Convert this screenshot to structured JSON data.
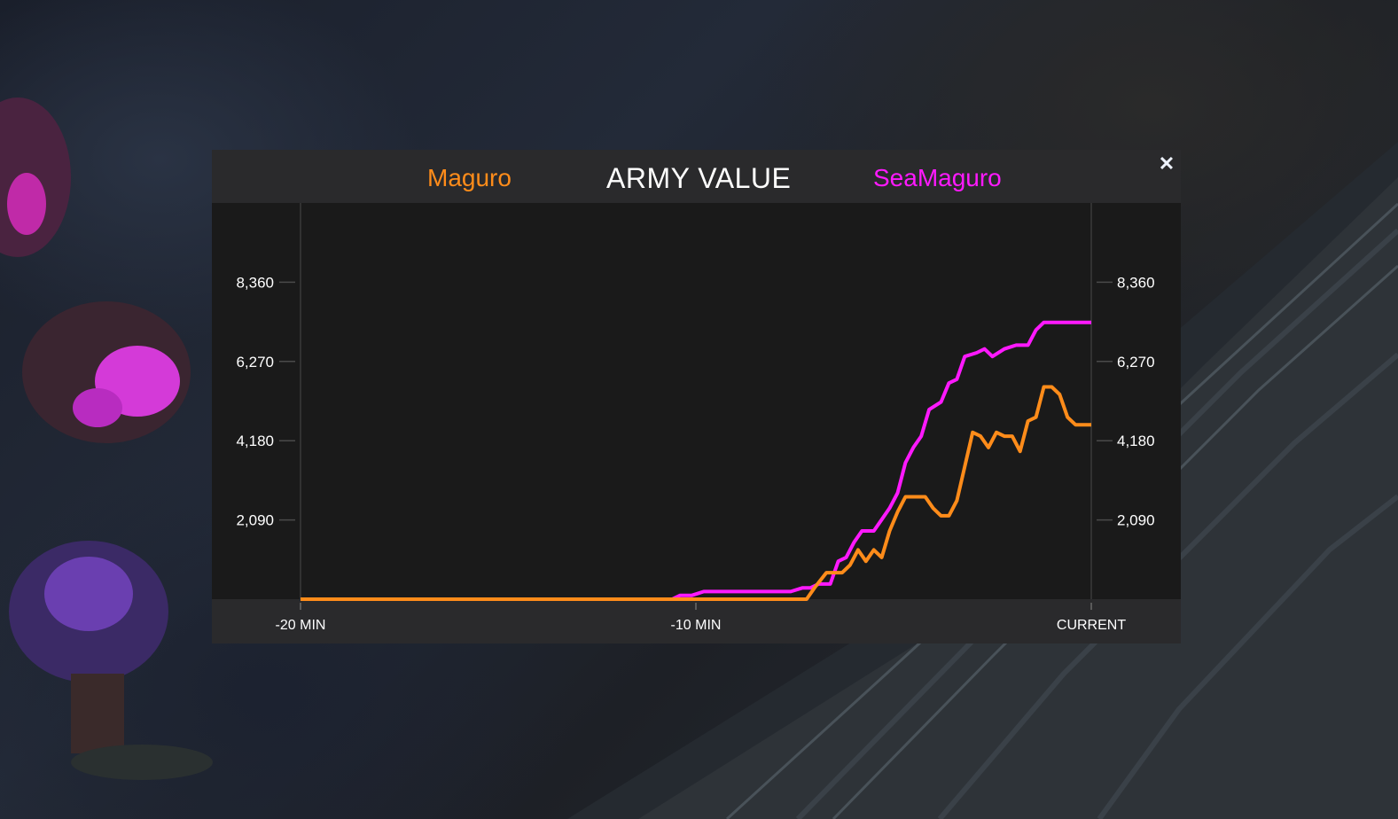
{
  "header": {
    "player_left": "Maguro",
    "title": "ARMY VALUE",
    "player_right": "SeaMaguro",
    "close_icon": "close-icon"
  },
  "colors": {
    "maguro": "#ff8c1a",
    "seamaguro": "#ff19ff",
    "panel_bg": "#2a2a2c",
    "plot_bg": "#1a1a1a"
  },
  "chart_data": {
    "type": "line",
    "title": "ARMY VALUE",
    "y_ticks": [
      "2,090",
      "4,180",
      "6,270",
      "8,360"
    ],
    "y_tick_values": [
      2090,
      4180,
      6270,
      8360
    ],
    "x_ticks": [
      "-20 MIN",
      "-10 MIN",
      "CURRENT"
    ],
    "xlim": [
      -20,
      0
    ],
    "ylim": [
      0,
      10450
    ],
    "grid": false,
    "series": [
      {
        "name": "SeaMaguro",
        "color": "#ff19ff",
        "points": [
          [
            -20,
            0
          ],
          [
            -10.6,
            0
          ],
          [
            -10.4,
            100
          ],
          [
            -10.1,
            100
          ],
          [
            -9.8,
            200
          ],
          [
            -8.8,
            200
          ],
          [
            -7.6,
            200
          ],
          [
            -7.3,
            300
          ],
          [
            -7.1,
            300
          ],
          [
            -6.9,
            400
          ],
          [
            -6.6,
            400
          ],
          [
            -6.4,
            1000
          ],
          [
            -6.2,
            1100
          ],
          [
            -6.0,
            1500
          ],
          [
            -5.8,
            1800
          ],
          [
            -5.5,
            1800
          ],
          [
            -5.3,
            2100
          ],
          [
            -5.1,
            2400
          ],
          [
            -4.9,
            2800
          ],
          [
            -4.7,
            3600
          ],
          [
            -4.5,
            4000
          ],
          [
            -4.3,
            4300
          ],
          [
            -4.1,
            5000
          ],
          [
            -3.8,
            5200
          ],
          [
            -3.6,
            5700
          ],
          [
            -3.4,
            5800
          ],
          [
            -3.2,
            6400
          ],
          [
            -2.9,
            6500
          ],
          [
            -2.7,
            6600
          ],
          [
            -2.5,
            6400
          ],
          [
            -2.2,
            6600
          ],
          [
            -1.9,
            6700
          ],
          [
            -1.6,
            6700
          ],
          [
            -1.4,
            7100
          ],
          [
            -1.2,
            7300
          ],
          [
            -0.9,
            7300
          ],
          [
            0,
            7300
          ]
        ]
      },
      {
        "name": "Maguro",
        "color": "#ff8c1a",
        "points": [
          [
            -20,
            0
          ],
          [
            -7.5,
            0
          ],
          [
            -7.2,
            0
          ],
          [
            -7.0,
            300
          ],
          [
            -6.7,
            700
          ],
          [
            -6.3,
            700
          ],
          [
            -6.1,
            900
          ],
          [
            -5.9,
            1300
          ],
          [
            -5.7,
            1000
          ],
          [
            -5.5,
            1300
          ],
          [
            -5.3,
            1100
          ],
          [
            -5.1,
            1800
          ],
          [
            -4.9,
            2300
          ],
          [
            -4.7,
            2700
          ],
          [
            -4.5,
            2700
          ],
          [
            -4.2,
            2700
          ],
          [
            -4.0,
            2400
          ],
          [
            -3.8,
            2200
          ],
          [
            -3.6,
            2200
          ],
          [
            -3.4,
            2600
          ],
          [
            -3.2,
            3500
          ],
          [
            -3.0,
            4400
          ],
          [
            -2.8,
            4300
          ],
          [
            -2.6,
            4000
          ],
          [
            -2.4,
            4400
          ],
          [
            -2.2,
            4300
          ],
          [
            -2.0,
            4300
          ],
          [
            -1.8,
            3900
          ],
          [
            -1.6,
            4700
          ],
          [
            -1.4,
            4800
          ],
          [
            -1.2,
            5600
          ],
          [
            -1.0,
            5600
          ],
          [
            -0.8,
            5400
          ],
          [
            -0.6,
            4800
          ],
          [
            -0.4,
            4600
          ],
          [
            0,
            4600
          ]
        ]
      }
    ]
  }
}
